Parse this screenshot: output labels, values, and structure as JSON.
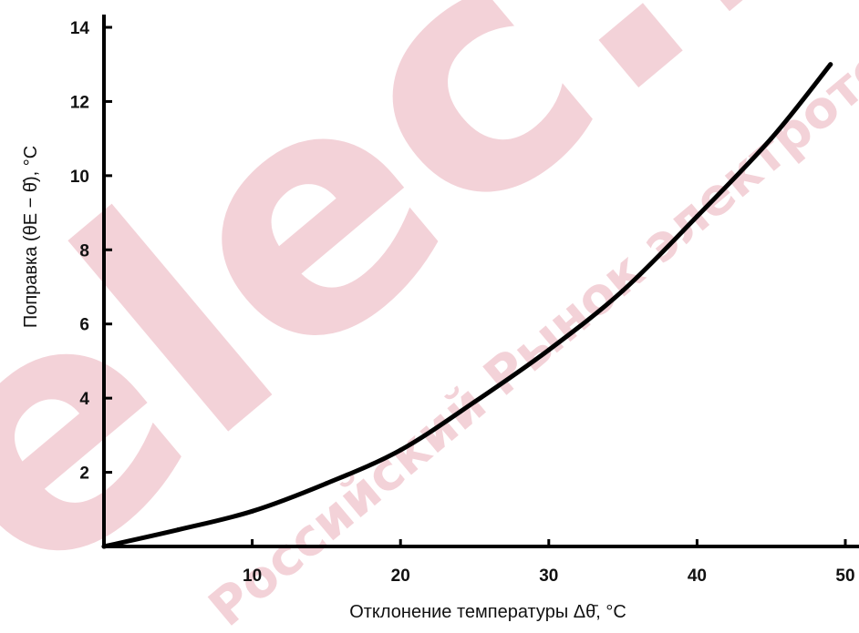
{
  "watermark": {
    "logo_text": "elec.ru",
    "tagline": "Российский Рынок электротехники",
    "color": "#f3d2d8"
  },
  "chart_data": {
    "type": "line",
    "title": "",
    "xlabel": "Отклонение температуры   Δθ̄, °C",
    "ylabel": "Поправка (θE − θ̄), °C",
    "xlim": [
      0,
      50
    ],
    "ylim": [
      0,
      14
    ],
    "x_ticks": [
      "10",
      "20",
      "30",
      "40",
      "50"
    ],
    "y_ticks": [
      "2",
      "4",
      "6",
      "8",
      "10",
      "12",
      "14"
    ],
    "grid": false,
    "line_color": "#000000",
    "series": [
      {
        "x": [
          0,
          5,
          10,
          15,
          20,
          25,
          30,
          35,
          40,
          45,
          49
        ],
        "y": [
          0,
          0.45,
          0.95,
          1.7,
          2.6,
          3.9,
          5.3,
          6.9,
          8.9,
          11.0,
          13.0
        ]
      }
    ]
  }
}
